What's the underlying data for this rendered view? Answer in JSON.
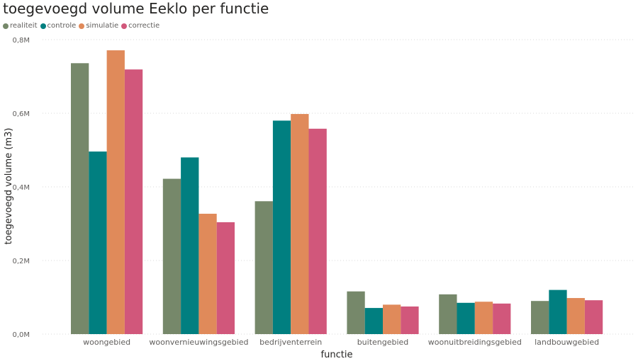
{
  "chart_data": {
    "type": "bar",
    "title": "toegevoegd volume Eeklo per functie",
    "xlabel": "functie",
    "ylabel": "toegevoegd volume (m3)",
    "categories": [
      "woongebied",
      "woonvernieuwingsgebied",
      "bedrijventerrein",
      "buitengebied",
      "woonuitbreidingsgebied",
      "landbouwgebied"
    ],
    "series": [
      {
        "name": "realiteit",
        "color": "#76886a",
        "values": [
          736000,
          422000,
          361000,
          116000,
          108000,
          90000
        ]
      },
      {
        "name": "controle",
        "color": "#017f80",
        "values": [
          496000,
          480000,
          580000,
          71000,
          85000,
          120000
        ]
      },
      {
        "name": "simulatie",
        "color": "#e08a5a",
        "values": [
          771000,
          327000,
          598000,
          80000,
          88000,
          98000
        ]
      },
      {
        "name": "correctie",
        "color": "#d1577b",
        "values": [
          719000,
          304000,
          558000,
          75000,
          83000,
          92000
        ]
      }
    ],
    "ylim": [
      0,
      800000
    ],
    "yticks": [
      {
        "value": 0,
        "label": "0,0M"
      },
      {
        "value": 200000,
        "label": "0,2M"
      },
      {
        "value": 400000,
        "label": "0,4M"
      },
      {
        "value": 600000,
        "label": "0,6M"
      },
      {
        "value": 800000,
        "label": "0,8M"
      }
    ],
    "grid": true,
    "legend_position": "top-left"
  }
}
